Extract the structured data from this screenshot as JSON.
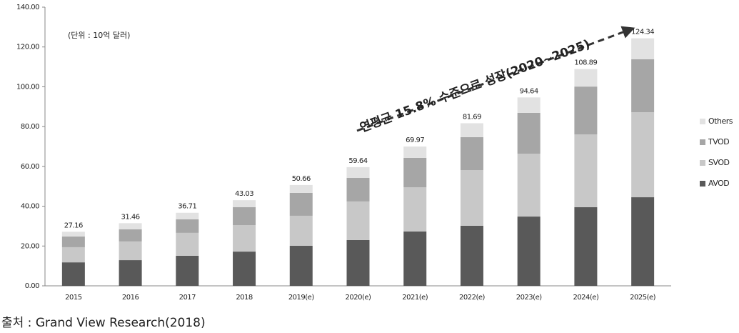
{
  "chart_data": {
    "type": "stacked_bar",
    "annotations": {
      "unit": "(단위 : 10억 달러)",
      "growth": "연평균 15.8% 수준으로 성장(2020~2025)",
      "source": "출처 : Grand View Research(2018)"
    },
    "categories": [
      "2015",
      "2016",
      "2017",
      "2018",
      "2019(e)",
      "2020(e)",
      "2021(e)",
      "2022(e)",
      "2023(e)",
      "2024(e)",
      "2025(e)"
    ],
    "series": [
      {
        "name": "AVOD",
        "color": "#595959",
        "values": [
          11.8,
          12.9,
          15.1,
          17.2,
          20.1,
          23.0,
          27.3,
          30.2,
          34.8,
          39.5,
          44.5
        ]
      },
      {
        "name": "SVOD",
        "color": "#c8c8c8",
        "values": [
          7.6,
          9.4,
          11.5,
          13.3,
          15.1,
          19.4,
          22.2,
          27.9,
          31.6,
          36.6,
          42.7
        ]
      },
      {
        "name": "TVOD",
        "color": "#a6a6a6",
        "values": [
          5.4,
          6.1,
          6.8,
          9.0,
          11.5,
          11.8,
          14.8,
          16.6,
          20.5,
          24.0,
          26.6
        ]
      },
      {
        "name": "Others",
        "color": "#e2e2e2",
        "values": [
          2.36,
          3.06,
          3.31,
          3.53,
          3.96,
          5.44,
          5.67,
          6.99,
          7.74,
          8.79,
          10.54
        ]
      }
    ],
    "totals": [
      27.16,
      31.46,
      36.71,
      43.03,
      50.66,
      59.64,
      69.97,
      81.69,
      94.64,
      108.89,
      124.34
    ],
    "ylim": [
      0,
      140
    ],
    "yticks": [
      {
        "value": 0,
        "label": "0.00"
      },
      {
        "value": 20,
        "label": "20.00"
      },
      {
        "value": 40,
        "label": "40.00"
      },
      {
        "value": 60,
        "label": "60.00"
      },
      {
        "value": 80,
        "label": "80.00"
      },
      {
        "value": 100,
        "label": "100.00"
      },
      {
        "value": 120,
        "label": "120.00"
      },
      {
        "value": 140,
        "label": "140.00"
      }
    ],
    "legend": "right"
  }
}
